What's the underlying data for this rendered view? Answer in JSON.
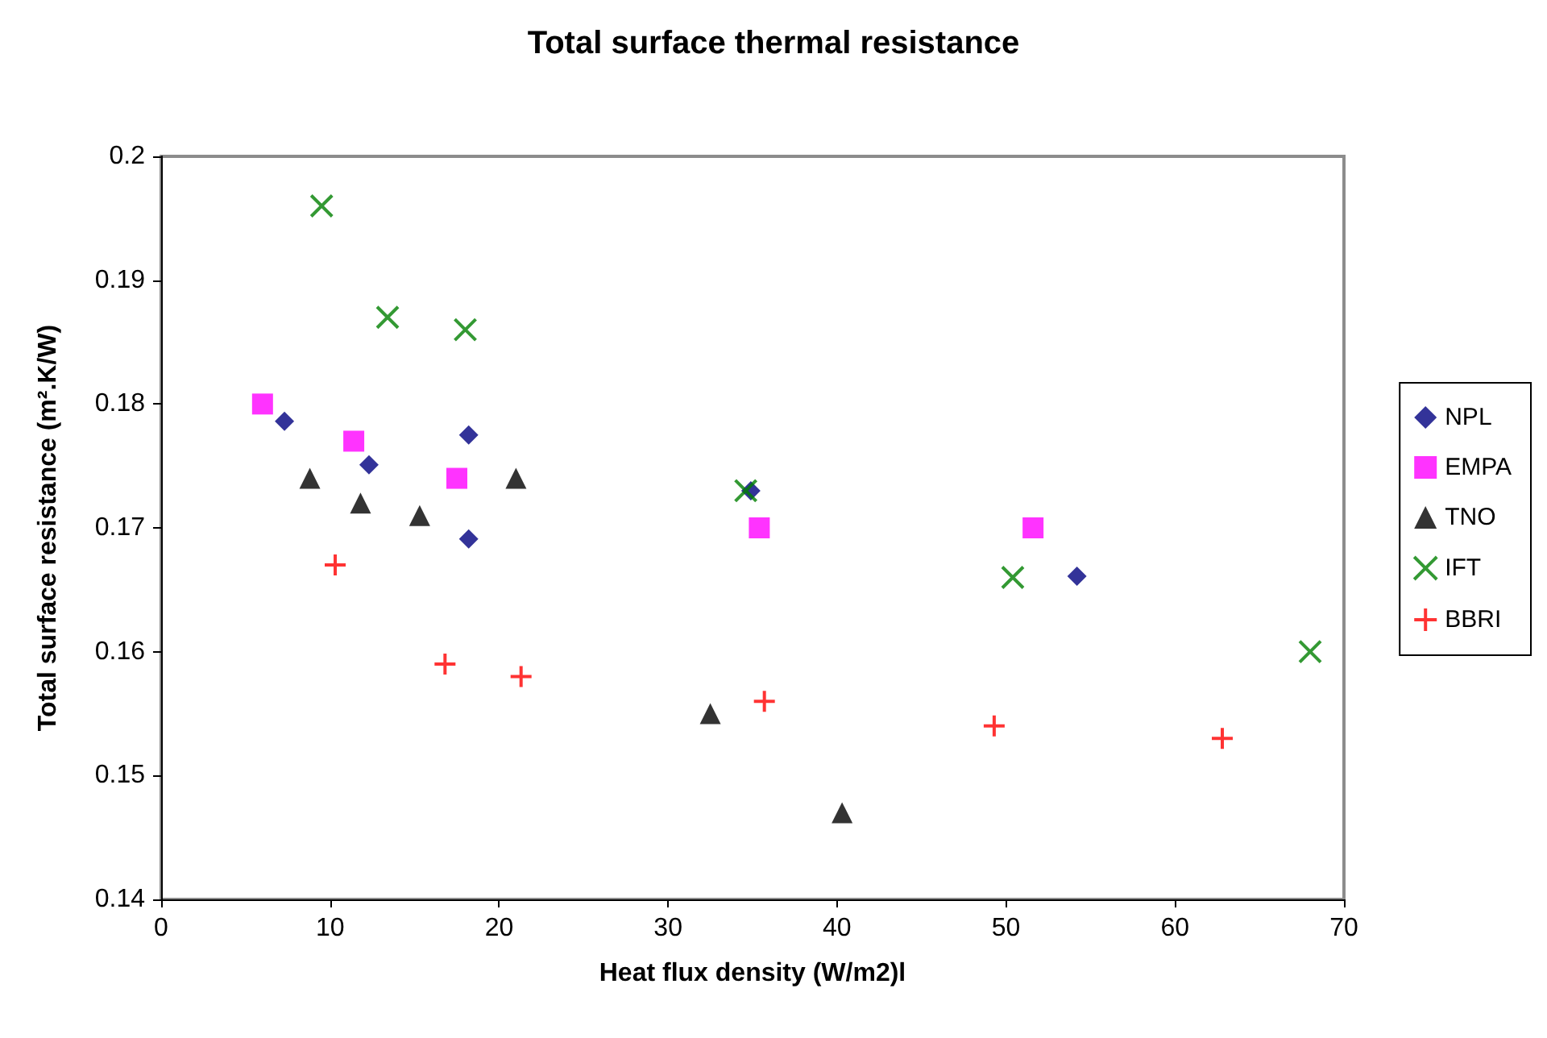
{
  "chart_data": {
    "type": "scatter",
    "title": "Total surface thermal resistance",
    "xlabel": "Heat flux density (W/m2)l",
    "ylabel": "Total surface resistance (m².K/W)",
    "xlim": [
      0,
      70
    ],
    "xticks": [
      0,
      10,
      20,
      30,
      40,
      50,
      60,
      70
    ],
    "ylim": [
      0.14,
      0.2
    ],
    "yticks": [
      0.14,
      0.15,
      0.16,
      0.17,
      0.18,
      0.19,
      0.2
    ],
    "grid": false,
    "legend": "right",
    "series": [
      {
        "name": "NPL",
        "color": "#000080",
        "marker": "diamond",
        "x": [
          7.3,
          12.3,
          18.2,
          18.2,
          34.9,
          54.2
        ],
        "values": [
          0.1786,
          0.1751,
          0.1775,
          0.1691,
          0.173,
          0.1661
        ]
      },
      {
        "name": "EMPA",
        "color": "#ff00ff",
        "marker": "square",
        "x": [
          6.0,
          11.4,
          17.5,
          35.4,
          51.6
        ],
        "values": [
          0.18,
          0.177,
          0.174,
          0.17,
          0.17
        ]
      },
      {
        "name": "TNO",
        "color": "#000000",
        "marker": "triangle",
        "x": [
          8.8,
          11.8,
          15.3,
          21.0,
          32.5,
          40.3
        ],
        "values": [
          0.174,
          0.172,
          0.171,
          0.174,
          0.155,
          0.147
        ]
      },
      {
        "name": "IFT",
        "color": "#008000",
        "marker": "x",
        "x": [
          9.5,
          13.4,
          18.0,
          34.6,
          50.4,
          68.0
        ],
        "values": [
          0.196,
          0.187,
          0.186,
          0.173,
          0.166,
          0.16
        ]
      },
      {
        "name": "BBRI",
        "color": "#ff0000",
        "marker": "cross",
        "x": [
          10.3,
          16.8,
          21.3,
          35.7,
          49.3,
          62.8
        ],
        "values": [
          0.167,
          0.159,
          0.158,
          0.156,
          0.154,
          0.153
        ]
      }
    ]
  }
}
